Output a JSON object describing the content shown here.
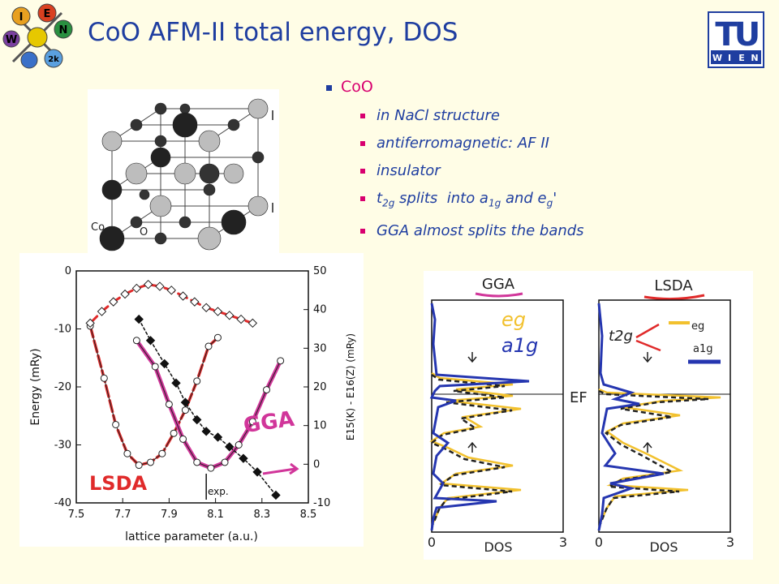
{
  "slide": {
    "title": "CoO AFM-II total energy, DOS",
    "logo_left_letters": [
      "W",
      "I",
      "E",
      "N",
      "2k"
    ],
    "logo_right_letters": [
      "T",
      "U",
      "W",
      "I",
      "E",
      "N"
    ]
  },
  "bullets": {
    "main": "CoO",
    "items": [
      {
        "text": "in NaCl structure"
      },
      {
        "text": "antiferromagnetic: AF II"
      },
      {
        "text": "insulator"
      },
      {
        "text_before": "t",
        "sub1": "2g",
        "mid": " splits  into a",
        "sub2": "1g",
        "mid2": " and e",
        "sub3": "g",
        "after": "'"
      },
      {
        "text": "GGA almost splits the bands"
      }
    ]
  },
  "crystal": {
    "label_co": "Co",
    "label_o": "O"
  },
  "energy_chart": {
    "chart_data": {
      "type": "line",
      "xlabel": "lattice parameter (a.u.)",
      "ylabel_left": "Energy (mRy)",
      "ylabel_right": "E15(K) - E16(Z)  (mRy)",
      "x_ticks": [
        "7.5",
        "7.7",
        "7.9",
        "8.1",
        "8.3",
        "8.5"
      ],
      "y_left_ticks": [
        "0",
        "-10",
        "-20",
        "-30",
        "-40"
      ],
      "y_right_ticks": [
        "50",
        "40",
        "30",
        "20",
        "10",
        "0",
        "-10"
      ],
      "xlim": [
        7.5,
        8.5
      ],
      "ylim_left": [
        -40,
        0
      ],
      "ylim_right": [
        -10,
        50
      ],
      "series": [
        {
          "name": "LSDA",
          "marker": "open-circle",
          "x": [
            7.56,
            7.62,
            7.67,
            7.72,
            7.77,
            7.82,
            7.87,
            7.92,
            7.97,
            8.02,
            8.07,
            8.11
          ],
          "y": [
            -9.5,
            -18.5,
            -26.5,
            -31.5,
            -33.5,
            -33.0,
            -31.5,
            -28.0,
            -24.0,
            -19.0,
            -13.0,
            -11.5
          ]
        },
        {
          "name": "GGA",
          "marker": "open-circle",
          "x": [
            7.76,
            7.84,
            7.9,
            7.96,
            8.02,
            8.08,
            8.14,
            8.2,
            8.26,
            8.32,
            8.38
          ],
          "y": [
            -12.0,
            -16.5,
            -23.0,
            -29.0,
            -33.0,
            -34.0,
            -33.0,
            -30.0,
            -26.0,
            -20.5,
            -15.5
          ]
        },
        {
          "name": "",
          "marker": "open-diamond",
          "axis": "right",
          "x": [
            7.56,
            7.61,
            7.66,
            7.71,
            7.76,
            7.81,
            7.86,
            7.91,
            7.96,
            8.01,
            8.06,
            8.11,
            8.16,
            8.21,
            8.26
          ],
          "y": [
            36.5,
            39.5,
            42.0,
            44.0,
            45.5,
            46.5,
            46.0,
            45.0,
            43.5,
            42.0,
            40.5,
            39.5,
            38.5,
            37.5,
            36.5
          ]
        },
        {
          "name": "",
          "marker": "filled-diamond",
          "axis": "right",
          "x": [
            7.77,
            7.82,
            7.88,
            7.93,
            7.97,
            8.02,
            8.06,
            8.11,
            8.16,
            8.22,
            8.28,
            8.36
          ],
          "y": [
            37.5,
            32.0,
            26.0,
            21.0,
            16.0,
            11.5,
            8.5,
            7.0,
            4.5,
            1.5,
            -2.0,
            -8.0
          ]
        }
      ],
      "annotations": [
        {
          "text": "exp.",
          "x": 8.06
        },
        {
          "text": "LSDA"
        },
        {
          "text": "GGA"
        }
      ]
    }
  },
  "dos": {
    "panel_left_title": "GGA",
    "panel_right_title": "LSDA",
    "ef_label": "EF",
    "eg_label": "eg",
    "a1g_label": "a1g",
    "t2g_label": "t2g",
    "eg_right": "eg",
    "a1g_right": "a1g",
    "x_label": "DOS",
    "tick_0": "0",
    "tick_3": "3"
  },
  "colors": {
    "title_blue": "#1f3ea0",
    "bullet_pink": "#d8006f",
    "background": "#fffde6",
    "lsda_red": "#e02a2a",
    "gga_magenta": "#d1369a",
    "dos_blue": "#2536b0",
    "dos_yellow": "#f2c12e"
  }
}
